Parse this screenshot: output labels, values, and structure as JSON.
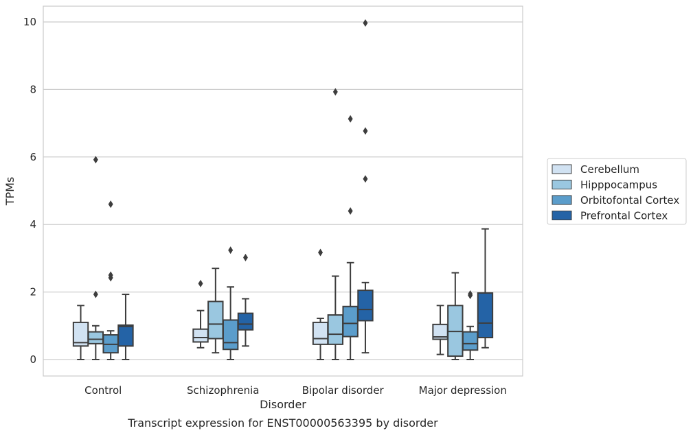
{
  "chart_data": {
    "type": "box",
    "xlabel": "Disorder",
    "ylabel": "TPMs",
    "caption": "Transcript expression for ENST00000563395 by disorder",
    "ylim": [
      -0.48,
      10.48
    ],
    "yticks": [
      0,
      2,
      4,
      6,
      8,
      10
    ],
    "grid": "horizontal",
    "legend_position": "right",
    "categories": [
      "Control",
      "Schizophrenia",
      "Bipolar disorder",
      "Major depression"
    ],
    "series": [
      {
        "name": "Cerebellum",
        "color": "#d1e2f2",
        "boxes": [
          {
            "whislo": 0,
            "q1": 0.4,
            "med": 0.5,
            "q3": 1.1,
            "whishi": 1.6,
            "fliers": []
          },
          {
            "whislo": 0.35,
            "q1": 0.52,
            "med": 0.65,
            "q3": 0.9,
            "whishi": 1.45,
            "fliers": [
              2.25
            ]
          },
          {
            "whislo": 0,
            "q1": 0.45,
            "med": 0.62,
            "q3": 1.1,
            "whishi": 1.22,
            "fliers": [
              3.17
            ]
          },
          {
            "whislo": 0.15,
            "q1": 0.6,
            "med": 0.67,
            "q3": 1.04,
            "whishi": 1.6,
            "fliers": []
          }
        ]
      },
      {
        "name": "Hipppocampus",
        "color": "#9ac7e0",
        "boxes": [
          {
            "whislo": 0,
            "q1": 0.47,
            "med": 0.6,
            "q3": 0.82,
            "whishi": 1.0,
            "fliers": [
              1.93,
              5.92
            ]
          },
          {
            "whislo": 0.2,
            "q1": 0.62,
            "med": 1.05,
            "q3": 1.72,
            "whishi": 2.7,
            "fliers": []
          },
          {
            "whislo": 0,
            "q1": 0.45,
            "med": 0.75,
            "q3": 1.32,
            "whishi": 2.47,
            "fliers": [
              7.93
            ]
          },
          {
            "whislo": 0,
            "q1": 0.1,
            "med": 0.83,
            "q3": 1.6,
            "whishi": 2.57,
            "fliers": []
          }
        ]
      },
      {
        "name": "Orbitofontal Cortex",
        "color": "#5b9dcb",
        "boxes": [
          {
            "whislo": 0,
            "q1": 0.2,
            "med": 0.45,
            "q3": 0.73,
            "whishi": 0.85,
            "fliers": [
              2.42,
              2.5,
              4.6
            ]
          },
          {
            "whislo": 0,
            "q1": 0.3,
            "med": 0.5,
            "q3": 1.17,
            "whishi": 2.15,
            "fliers": [
              3.24
            ]
          },
          {
            "whislo": 0,
            "q1": 0.68,
            "med": 1.07,
            "q3": 1.57,
            "whishi": 2.87,
            "fliers": [
              4.4,
              7.13
            ]
          },
          {
            "whislo": 0,
            "q1": 0.28,
            "med": 0.47,
            "q3": 0.82,
            "whishi": 0.98,
            "fliers": [
              1.9,
              1.94
            ]
          }
        ]
      },
      {
        "name": "Prefrontal Cortex",
        "color": "#2463a6",
        "boxes": [
          {
            "whislo": 0,
            "q1": 0.4,
            "med": 0.98,
            "q3": 1.02,
            "whishi": 1.93,
            "fliers": []
          },
          {
            "whislo": 0.4,
            "q1": 0.88,
            "med": 1.05,
            "q3": 1.37,
            "whishi": 1.8,
            "fliers": [
              3.02
            ]
          },
          {
            "whislo": 0.2,
            "q1": 1.15,
            "med": 1.48,
            "q3": 2.05,
            "whishi": 2.28,
            "fliers": [
              5.35,
              6.77,
              9.97
            ]
          },
          {
            "whislo": 0.35,
            "q1": 0.65,
            "med": 1.08,
            "q3": 1.97,
            "whishi": 3.87,
            "fliers": []
          }
        ]
      }
    ]
  }
}
